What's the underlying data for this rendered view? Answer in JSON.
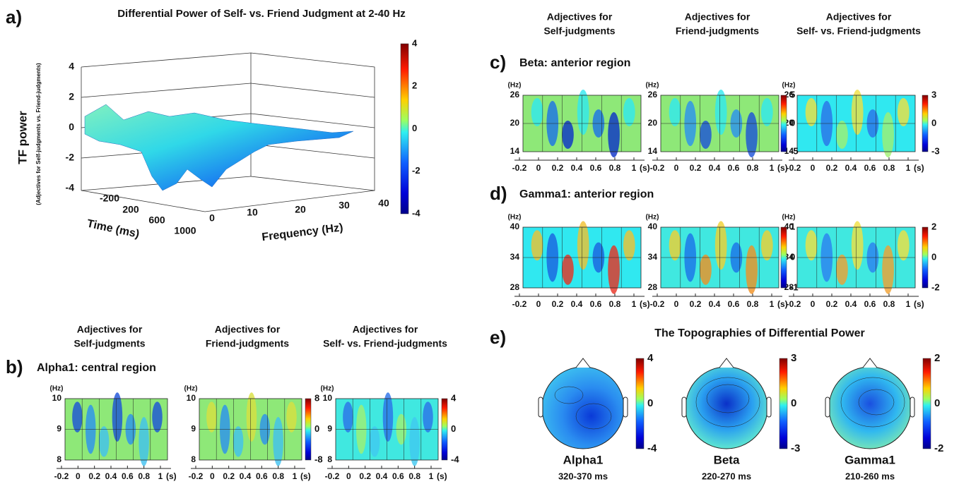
{
  "a": {
    "label": "a)",
    "title": "Differential Power of Self- vs. Friend Judgment at 2-40 Hz",
    "z_label": "TF power",
    "z_sublabel": "(Adjectives for Self-judgments vs. Friend-judgments)",
    "z_ticks": [
      "4",
      "2",
      "0",
      "-2",
      "-4"
    ],
    "time_label": "Time (ms)",
    "time_ticks": [
      "-200",
      "200",
      "600",
      "1000"
    ],
    "freq_label": "Frequency (Hz)",
    "freq_ticks": [
      "0",
      "10",
      "20",
      "30",
      "40"
    ],
    "colorbar": [
      "4",
      "2",
      "0",
      "-2",
      "-4"
    ]
  },
  "headers": [
    [
      "Adjectives for",
      "Self-judgments"
    ],
    [
      "Adjectives for",
      "Friend-judgments"
    ],
    [
      "Adjectives for",
      "Self- vs. Friend-judgments"
    ]
  ],
  "rows": [
    {
      "label": "c)",
      "title": "Beta: anterior region",
      "y_unit": "(Hz)",
      "yticks": [
        "26",
        "20",
        "14"
      ],
      "xticks": [
        "-0.2",
        "0",
        "0.2",
        "0.4",
        "0.6",
        "0.8",
        "1"
      ],
      "x_unit": "(s)",
      "colorbars": [
        [
          "5",
          "0",
          "-5"
        ],
        [
          "3",
          "0",
          "-3"
        ]
      ]
    },
    {
      "label": "d)",
      "title": "Gamma1: anterior region",
      "y_unit": "(Hz)",
      "yticks": [
        "40",
        "34",
        "28"
      ],
      "xticks": [
        "-0.2",
        "0",
        "0.2",
        "0.4",
        "0.6",
        "0.8",
        "1"
      ],
      "x_unit": "(s)",
      "colorbars": [
        [
          "1",
          "0",
          "-1"
        ],
        [
          "2",
          "0",
          "-2"
        ]
      ]
    },
    {
      "label": "b)",
      "title": "Alpha1: central region",
      "y_unit": "(Hz)",
      "yticks": [
        "10",
        "9",
        "8"
      ],
      "xticks": [
        "-0.2",
        "0",
        "0.2",
        "0.4",
        "0.6",
        "0.8",
        "1"
      ],
      "x_unit": "(s)",
      "colorbars": [
        [
          "8",
          "0",
          "-8"
        ],
        [
          "4",
          "0",
          "-4"
        ]
      ]
    }
  ],
  "e": {
    "label": "e)",
    "title": "The Topographies of Differential Power",
    "items": [
      {
        "name": "Alpha1",
        "time": "320-370 ms",
        "colorbar": [
          "4",
          "0",
          "-4"
        ]
      },
      {
        "name": "Beta",
        "time": "220-270 ms",
        "colorbar": [
          "3",
          "0",
          "-3"
        ]
      },
      {
        "name": "Gamma1",
        "time": "210-260 ms",
        "colorbar": [
          "2",
          "0",
          "-2"
        ]
      }
    ]
  }
}
